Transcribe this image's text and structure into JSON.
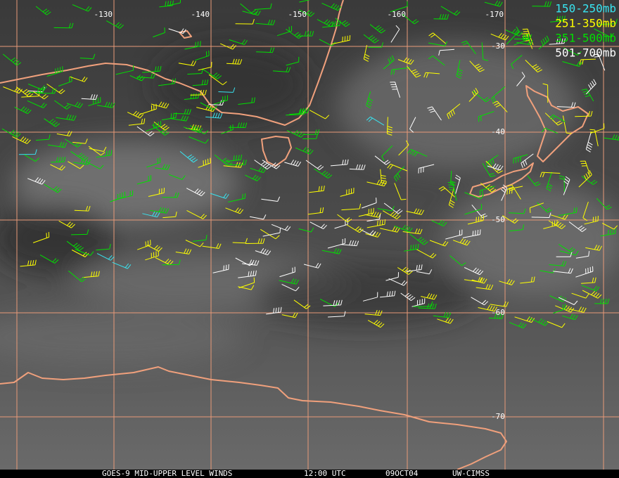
{
  "map": {
    "longitude_labels": [
      "-130",
      "-140",
      "-150",
      "-160",
      "-170"
    ],
    "latitude_labels": [
      "-30",
      "-40",
      "-50",
      "-60",
      "-70"
    ],
    "legend": [
      {
        "label": "150-250mb",
        "color": "#38e4f0"
      },
      {
        "label": "251-350mb",
        "color": "#ffff00"
      },
      {
        "label": "351-500mb",
        "color": "#00e000"
      },
      {
        "label": "501-700mb",
        "color": "#ffffff"
      }
    ],
    "footer": {
      "title": "GOES-9 MID-UPPER LEVEL WINDS",
      "time": "12:00 UTC",
      "date": "09OCT04",
      "source": "UW-CIMSS"
    }
  }
}
